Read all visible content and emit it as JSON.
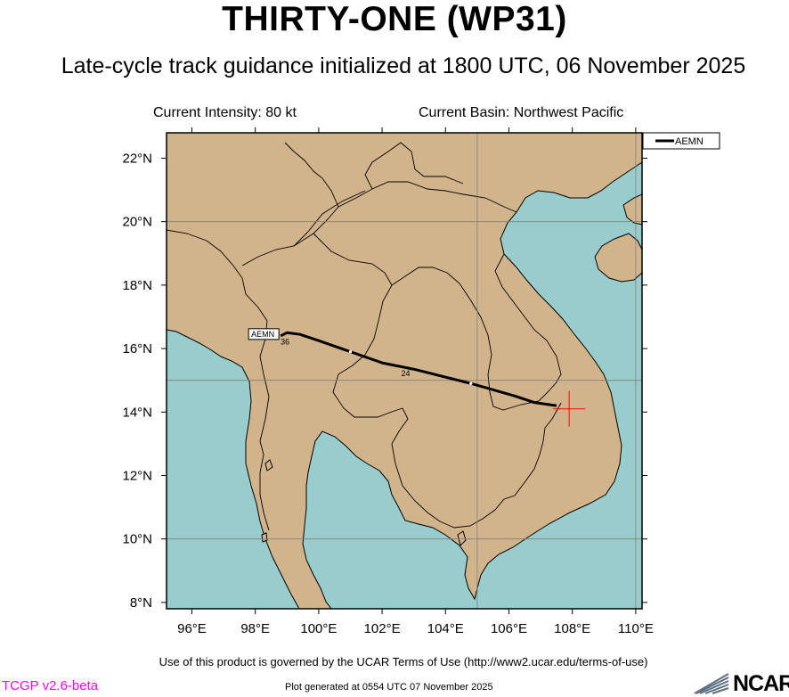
{
  "header": {
    "title": "THIRTY-ONE (WP31)",
    "subtitle": "Late-cycle track guidance initialized at 1800 UTC, 06 November 2025",
    "intensity": "Current Intensity: 80 kt",
    "basin": "Current Basin: Northwest Pacific"
  },
  "map": {
    "colors": {
      "ocean": "#99CCCC",
      "land": "#D2B48C",
      "track": "#000000",
      "marker": "#FF0000"
    },
    "lon_range": [
      95.2,
      110.2
    ],
    "lat_range": [
      7.8,
      22.8
    ],
    "x_ticks": [
      "96°E",
      "98°E",
      "100°E",
      "102°E",
      "104°E",
      "106°E",
      "108°E",
      "110°E"
    ],
    "y_ticks": [
      "8°N",
      "10°N",
      "12°N",
      "14°N",
      "16°N",
      "18°N",
      "20°N",
      "22°N"
    ],
    "gridlines": {
      "lon": [
        105,
        110
      ],
      "lat": [
        10,
        15,
        20
      ]
    },
    "current_position": {
      "lon": 107.9,
      "lat": 14.1
    },
    "legend": {
      "placement": "top-right",
      "entries": [
        "AEMN"
      ]
    }
  },
  "chart_data": {
    "type": "line",
    "series": [
      {
        "name": "AEMN",
        "lon": [
          107.5,
          106.8,
          106.2,
          105.5,
          104.8,
          104.0,
          103.0,
          102.0,
          101.0,
          100.0,
          99.4,
          99.0,
          98.8
        ],
        "lat": [
          14.2,
          14.3,
          14.5,
          14.7,
          14.9,
          15.1,
          15.35,
          15.55,
          15.9,
          16.25,
          16.45,
          16.5,
          16.4
        ],
        "hour_labels": [
          {
            "text": "24",
            "lon": 102.6,
            "lat": 15.35
          },
          {
            "text": "36",
            "lon": 98.8,
            "lat": 16.35
          }
        ]
      }
    ]
  },
  "footer": {
    "terms": "Use of this product is governed by the UCAR Terms of Use (http://www2.ucar.edu/terms-of-use)",
    "version": "TCGP v2.6-beta",
    "generated": "Plot generated at 0554 UTC   07 November 2025",
    "logo_text": "NCAR"
  }
}
